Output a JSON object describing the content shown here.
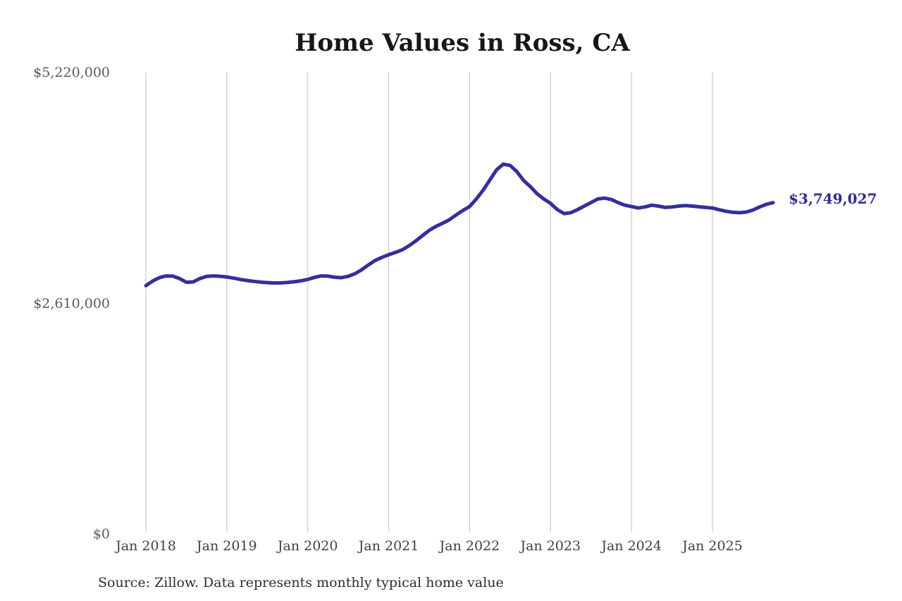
{
  "title": "Home Values in Ross, CA",
  "source_note": "Source: Zillow. Data represents monthly typical home value",
  "colors": {
    "line": "#332f9b",
    "end_label": "#2d2a92",
    "gridline": "#cbcbcb",
    "title_text": "#171717",
    "y_tick_text": "#595959",
    "x_tick_text": "#404040",
    "source_text": "#2d2d2d",
    "background": "#ffffff"
  },
  "chart_data": {
    "type": "line",
    "title": "Home Values in Ross, CA",
    "xlabel": "",
    "ylabel": "",
    "ylim": [
      0,
      5220000
    ],
    "grid": "vertical-yearly-only",
    "legend": "none",
    "x_interval": "monthly",
    "x_start": "Jan 2018",
    "x_end": "Oct 2025",
    "x_tick_labels": [
      "Jan 2018",
      "Jan 2019",
      "Jan 2020",
      "Jan 2021",
      "Jan 2022",
      "Jan 2023",
      "Jan 2024",
      "Jan 2025"
    ],
    "y_ticks": [
      {
        "value": 5220000,
        "label": "$5,220,000"
      },
      {
        "value": 2610000,
        "label": "$2,610,000"
      },
      {
        "value": 0,
        "label": "$0"
      }
    ],
    "end_value": 3749027,
    "end_value_label": "$3,749,027",
    "values": [
      2810000,
      2862000,
      2900000,
      2920000,
      2918000,
      2890000,
      2848000,
      2852000,
      2890000,
      2915000,
      2920000,
      2916000,
      2908000,
      2895000,
      2880000,
      2868000,
      2858000,
      2850000,
      2844000,
      2840000,
      2841000,
      2846000,
      2854000,
      2864000,
      2880000,
      2903000,
      2920000,
      2918000,
      2905000,
      2900000,
      2915000,
      2945000,
      2990000,
      3045000,
      3095000,
      3130000,
      3160000,
      3185000,
      3215000,
      3260000,
      3315000,
      3375000,
      3435000,
      3480000,
      3515000,
      3555000,
      3610000,
      3660000,
      3705000,
      3790000,
      3890000,
      4005000,
      4120000,
      4185000,
      4170000,
      4100000,
      4000000,
      3930000,
      3850000,
      3790000,
      3740000,
      3670000,
      3625000,
      3635000,
      3670000,
      3710000,
      3750000,
      3790000,
      3800000,
      3785000,
      3750000,
      3720000,
      3705000,
      3688000,
      3700000,
      3720000,
      3710000,
      3695000,
      3700000,
      3710000,
      3715000,
      3710000,
      3702000,
      3695000,
      3688000,
      3668000,
      3652000,
      3640000,
      3635000,
      3642000,
      3665000,
      3700000,
      3730000,
      3749027
    ]
  }
}
